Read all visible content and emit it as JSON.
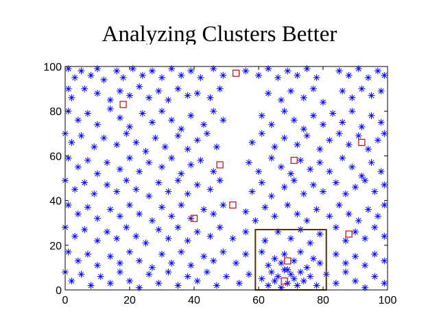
{
  "chart_data": {
    "type": "scatter",
    "title": "Analyzing Clusters Better",
    "xlabel": "",
    "ylabel": "",
    "xlim": [
      0,
      100
    ],
    "ylim": [
      0,
      100
    ],
    "x_ticks": [
      "0",
      "20",
      "40",
      "60",
      "80",
      "100"
    ],
    "y_ticks": [
      "0",
      "20",
      "40",
      "60",
      "80",
      "100"
    ],
    "grid": false,
    "series": [
      {
        "marker": "asterisk",
        "color": "#0000ff",
        "points": [
          [
            1,
            99
          ],
          [
            3,
            95
          ],
          [
            5,
            98
          ],
          [
            8,
            96
          ],
          [
            10,
            99
          ],
          [
            12,
            94
          ],
          [
            16,
            98
          ],
          [
            18,
            95
          ],
          [
            21,
            99
          ],
          [
            24,
            96
          ],
          [
            27,
            98
          ],
          [
            30,
            95
          ],
          [
            33,
            99
          ],
          [
            36,
            96
          ],
          [
            39,
            98
          ],
          [
            42,
            95
          ],
          [
            46,
            99
          ],
          [
            49,
            96
          ],
          [
            56,
            98
          ],
          [
            60,
            96
          ],
          [
            63,
            99
          ],
          [
            66,
            95
          ],
          [
            69,
            98
          ],
          [
            72,
            96
          ],
          [
            75,
            99
          ],
          [
            78,
            95
          ],
          [
            85,
            98
          ],
          [
            88,
            96
          ],
          [
            91,
            99
          ],
          [
            94,
            95
          ],
          [
            97,
            98
          ],
          [
            99,
            96
          ],
          [
            1,
            90
          ],
          [
            2,
            86
          ],
          [
            6,
            90
          ],
          [
            10,
            88
          ],
          [
            14,
            85
          ],
          [
            17,
            89
          ],
          [
            20,
            87
          ],
          [
            23,
            91
          ],
          [
            26,
            86
          ],
          [
            29,
            89
          ],
          [
            32,
            85
          ],
          [
            35,
            90
          ],
          [
            38,
            87
          ],
          [
            41,
            88
          ],
          [
            45,
            86
          ],
          [
            48,
            90
          ],
          [
            63,
            88
          ],
          [
            67,
            85
          ],
          [
            70,
            89
          ],
          [
            74,
            86
          ],
          [
            77,
            90
          ],
          [
            80,
            84
          ],
          [
            86,
            89
          ],
          [
            89,
            86
          ],
          [
            92,
            90
          ],
          [
            95,
            87
          ],
          [
            98,
            89
          ],
          [
            1,
            80
          ],
          [
            4,
            76
          ],
          [
            7,
            79
          ],
          [
            10,
            74
          ],
          [
            14,
            81
          ],
          [
            17,
            77
          ],
          [
            20,
            73
          ],
          [
            24,
            79
          ],
          [
            27,
            75
          ],
          [
            30,
            80
          ],
          [
            33,
            76
          ],
          [
            36,
            72
          ],
          [
            39,
            78
          ],
          [
            43,
            74
          ],
          [
            46,
            80
          ],
          [
            49,
            76
          ],
          [
            61,
            78
          ],
          [
            64,
            74
          ],
          [
            68,
            80
          ],
          [
            71,
            76
          ],
          [
            74,
            72
          ],
          [
            77,
            78
          ],
          [
            80,
            74
          ],
          [
            83,
            79
          ],
          [
            86,
            75
          ],
          [
            89,
            80
          ],
          [
            92,
            73
          ],
          [
            95,
            78
          ],
          [
            98,
            75
          ],
          [
            0,
            70
          ],
          [
            2,
            66
          ],
          [
            5,
            69
          ],
          [
            9,
            64
          ],
          [
            12,
            68
          ],
          [
            16,
            65
          ],
          [
            19,
            70
          ],
          [
            22,
            66
          ],
          [
            25,
            62
          ],
          [
            28,
            68
          ],
          [
            31,
            64
          ],
          [
            35,
            69
          ],
          [
            38,
            63
          ],
          [
            41,
            67
          ],
          [
            44,
            70
          ],
          [
            47,
            64
          ],
          [
            58,
            66
          ],
          [
            61,
            70
          ],
          [
            65,
            64
          ],
          [
            68,
            68
          ],
          [
            72,
            65
          ],
          [
            75,
            69
          ],
          [
            79,
            63
          ],
          [
            82,
            67
          ],
          [
            85,
            70
          ],
          [
            88,
            65
          ],
          [
            91,
            69
          ],
          [
            94,
            63
          ],
          [
            97,
            67
          ],
          [
            99,
            70
          ],
          [
            1,
            59
          ],
          [
            4,
            55
          ],
          [
            7,
            58
          ],
          [
            10,
            52
          ],
          [
            13,
            57
          ],
          [
            17,
            54
          ],
          [
            20,
            59
          ],
          [
            23,
            53
          ],
          [
            26,
            57
          ],
          [
            30,
            55
          ],
          [
            33,
            59
          ],
          [
            36,
            52
          ],
          [
            39,
            56
          ],
          [
            42,
            58
          ],
          [
            46,
            53
          ],
          [
            57,
            57
          ],
          [
            60,
            53
          ],
          [
            64,
            59
          ],
          [
            67,
            55
          ],
          [
            70,
            52
          ],
          [
            73,
            58
          ],
          [
            76,
            54
          ],
          [
            79,
            57
          ],
          [
            82,
            53
          ],
          [
            86,
            59
          ],
          [
            89,
            55
          ],
          [
            92,
            51
          ],
          [
            95,
            57
          ],
          [
            98,
            53
          ],
          [
            0,
            49
          ],
          [
            3,
            45
          ],
          [
            6,
            48
          ],
          [
            9,
            43
          ],
          [
            13,
            47
          ],
          [
            16,
            44
          ],
          [
            19,
            49
          ],
          [
            22,
            45
          ],
          [
            26,
            42
          ],
          [
            29,
            48
          ],
          [
            32,
            44
          ],
          [
            35,
            49
          ],
          [
            38,
            43
          ],
          [
            41,
            47
          ],
          [
            45,
            45
          ],
          [
            48,
            49
          ],
          [
            58,
            44
          ],
          [
            61,
            48
          ],
          [
            64,
            42
          ],
          [
            68,
            46
          ],
          [
            71,
            49
          ],
          [
            74,
            43
          ],
          [
            77,
            47
          ],
          [
            80,
            44
          ],
          [
            84,
            48
          ],
          [
            87,
            43
          ],
          [
            90,
            46
          ],
          [
            93,
            49
          ],
          [
            96,
            44
          ],
          [
            99,
            47
          ],
          [
            1,
            38
          ],
          [
            4,
            34
          ],
          [
            7,
            37
          ],
          [
            10,
            32
          ],
          [
            14,
            36
          ],
          [
            17,
            33
          ],
          [
            20,
            38
          ],
          [
            23,
            34
          ],
          [
            27,
            31
          ],
          [
            30,
            37
          ],
          [
            33,
            33
          ],
          [
            36,
            38
          ],
          [
            39,
            32
          ],
          [
            43,
            36
          ],
          [
            46,
            34
          ],
          [
            49,
            38
          ],
          [
            56,
            35
          ],
          [
            59,
            31
          ],
          [
            62,
            37
          ],
          [
            65,
            33
          ],
          [
            69,
            38
          ],
          [
            72,
            34
          ],
          [
            75,
            31
          ],
          [
            78,
            36
          ],
          [
            82,
            33
          ],
          [
            85,
            38
          ],
          [
            88,
            34
          ],
          [
            91,
            31
          ],
          [
            94,
            36
          ],
          [
            97,
            33
          ],
          [
            99,
            38
          ],
          [
            0,
            28
          ],
          [
            3,
            24
          ],
          [
            6,
            27
          ],
          [
            10,
            22
          ],
          [
            13,
            26
          ],
          [
            16,
            23
          ],
          [
            19,
            28
          ],
          [
            22,
            24
          ],
          [
            25,
            21
          ],
          [
            29,
            27
          ],
          [
            32,
            23
          ],
          [
            35,
            28
          ],
          [
            38,
            22
          ],
          [
            41,
            26
          ],
          [
            45,
            24
          ],
          [
            48,
            28
          ],
          [
            52,
            23
          ],
          [
            56,
            26
          ],
          [
            62,
            22
          ],
          [
            66,
            26
          ],
          [
            70,
            23
          ],
          [
            73,
            27
          ],
          [
            76,
            21
          ],
          [
            79,
            25
          ],
          [
            84,
            28
          ],
          [
            87,
            22
          ],
          [
            90,
            26
          ],
          [
            93,
            23
          ],
          [
            96,
            28
          ],
          [
            99,
            24
          ],
          [
            1,
            17
          ],
          [
            4,
            13
          ],
          [
            7,
            16
          ],
          [
            10,
            11
          ],
          [
            14,
            15
          ],
          [
            17,
            12
          ],
          [
            20,
            17
          ],
          [
            23,
            13
          ],
          [
            27,
            10
          ],
          [
            30,
            16
          ],
          [
            33,
            12
          ],
          [
            36,
            17
          ],
          [
            39,
            11
          ],
          [
            43,
            15
          ],
          [
            46,
            13
          ],
          [
            49,
            17
          ],
          [
            53,
            12
          ],
          [
            56,
            16
          ],
          [
            61,
            17
          ],
          [
            63,
            11
          ],
          [
            65,
            14
          ],
          [
            67,
            12
          ],
          [
            68,
            16
          ],
          [
            69,
            9
          ],
          [
            71,
            13
          ],
          [
            73,
            17
          ],
          [
            75,
            10
          ],
          [
            77,
            14
          ],
          [
            79,
            12
          ],
          [
            84,
            16
          ],
          [
            87,
            12
          ],
          [
            90,
            15
          ],
          [
            93,
            11
          ],
          [
            96,
            16
          ],
          [
            99,
            13
          ],
          [
            0,
            8
          ],
          [
            2,
            4
          ],
          [
            5,
            7
          ],
          [
            8,
            2
          ],
          [
            11,
            6
          ],
          [
            14,
            3
          ],
          [
            17,
            8
          ],
          [
            20,
            4
          ],
          [
            23,
            1
          ],
          [
            26,
            7
          ],
          [
            29,
            3
          ],
          [
            32,
            8
          ],
          [
            35,
            2
          ],
          [
            38,
            6
          ],
          [
            41,
            4
          ],
          [
            44,
            8
          ],
          [
            47,
            2
          ],
          [
            50,
            6
          ],
          [
            54,
            3
          ],
          [
            57,
            7
          ],
          [
            61,
            5
          ],
          [
            63,
            2
          ],
          [
            64,
            8
          ],
          [
            65,
            4
          ],
          [
            66,
            6
          ],
          [
            67,
            1
          ],
          [
            68,
            9
          ],
          [
            69,
            3
          ],
          [
            70,
            7
          ],
          [
            71,
            5
          ],
          [
            72,
            2
          ],
          [
            73,
            8
          ],
          [
            74,
            4
          ],
          [
            76,
            6
          ],
          [
            78,
            2
          ],
          [
            81,
            7
          ],
          [
            84,
            3
          ],
          [
            87,
            8
          ],
          [
            90,
            4
          ],
          [
            93,
            1
          ],
          [
            96,
            6
          ],
          [
            99,
            3
          ]
        ]
      },
      {
        "marker": "square",
        "color": "#d00000",
        "points": [
          [
            18,
            83
          ],
          [
            53,
            97
          ],
          [
            48,
            56
          ],
          [
            71,
            58
          ],
          [
            92,
            66
          ],
          [
            52,
            38
          ],
          [
            40,
            32
          ],
          [
            88,
            25
          ],
          [
            69,
            13
          ],
          [
            68,
            4
          ]
        ]
      }
    ],
    "annotations": [
      {
        "type": "rectangle",
        "color": "#5a2e00",
        "x": [
          59,
          81
        ],
        "y": [
          0,
          27
        ]
      }
    ]
  }
}
